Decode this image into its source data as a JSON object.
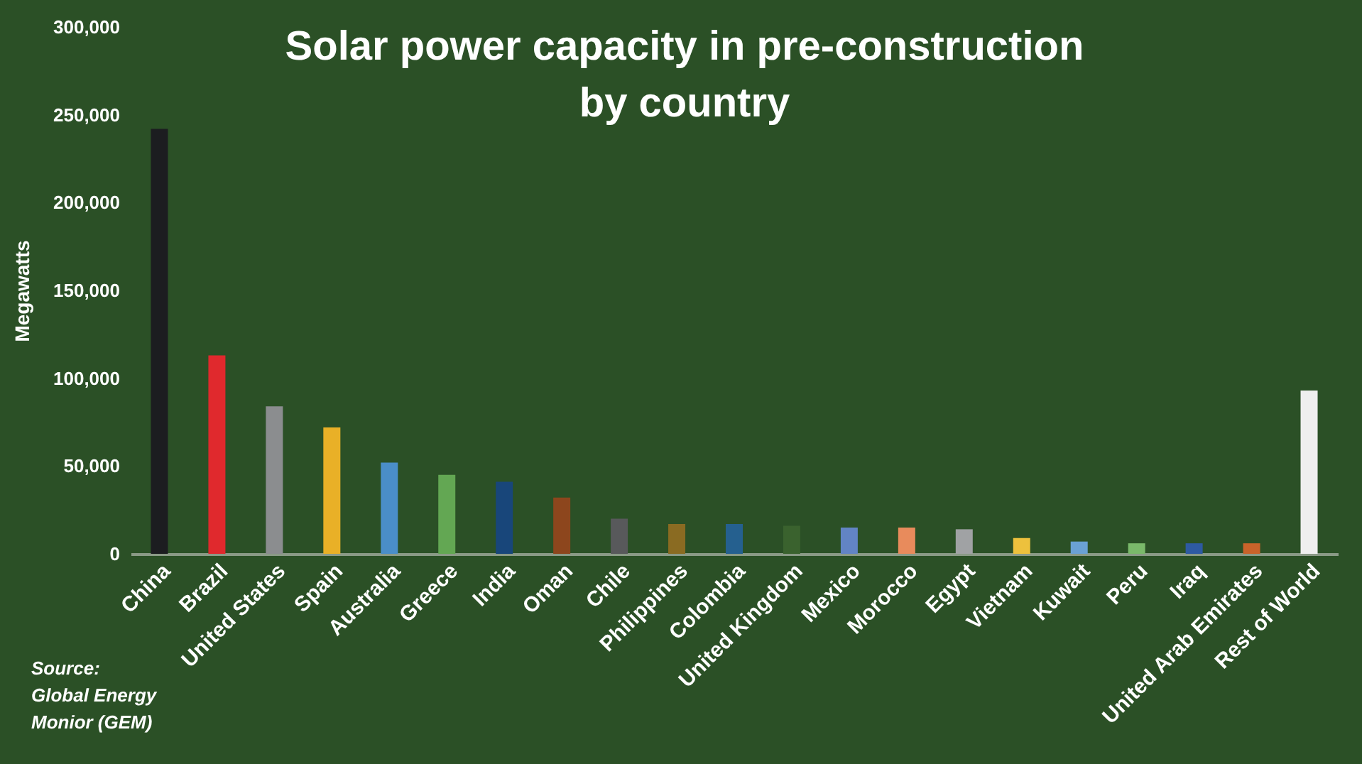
{
  "chart_data": {
    "type": "bar",
    "title": "Solar power capacity in pre-construction\nby country",
    "ylabel": "Megawatts",
    "categories": [
      "China",
      "Brazil",
      "United States",
      "Spain",
      "Australia",
      "Greece",
      "India",
      "Oman",
      "Chile",
      "Philippines",
      "Colombia",
      "United Kingdom",
      "Mexico",
      "Morocco",
      "Egypt",
      "Vietnam",
      "Kuwait",
      "Peru",
      "Iraq",
      "United Arab Emirates",
      "Rest of World"
    ],
    "values": [
      242000,
      113000,
      84000,
      72000,
      52000,
      45000,
      41000,
      32000,
      20000,
      17000,
      17000,
      16000,
      15000,
      15000,
      14000,
      9000,
      7000,
      6000,
      6000,
      6000,
      93000
    ],
    "colors": [
      "#1c1d20",
      "#e0292d",
      "#8b8d8f",
      "#e9b027",
      "#4a8ec8",
      "#63a753",
      "#18467a",
      "#8d461d",
      "#58595b",
      "#8a6b22",
      "#25608f",
      "#3a622e",
      "#6284c4",
      "#e88b5c",
      "#a0a2a4",
      "#edc13d",
      "#6aa1d4",
      "#7ab96a",
      "#2e5aa2",
      "#c9632a",
      "#efefef"
    ],
    "ylim": [
      0,
      300000
    ],
    "yticks": [
      0,
      {
        "value": 50000,
        "label": "50,000"
      },
      {
        "value": 100000,
        "label": "100,000"
      },
      {
        "value": 150000,
        "label": "150,000"
      },
      {
        "value": 200000,
        "label": "200,000"
      },
      {
        "value": 250000,
        "label": "250,000"
      },
      {
        "value": 300000,
        "label": "300,000"
      }
    ],
    "grid": false,
    "annotations": [
      "Source:\nGlobal Energy\nMonior (GEM)"
    ]
  }
}
